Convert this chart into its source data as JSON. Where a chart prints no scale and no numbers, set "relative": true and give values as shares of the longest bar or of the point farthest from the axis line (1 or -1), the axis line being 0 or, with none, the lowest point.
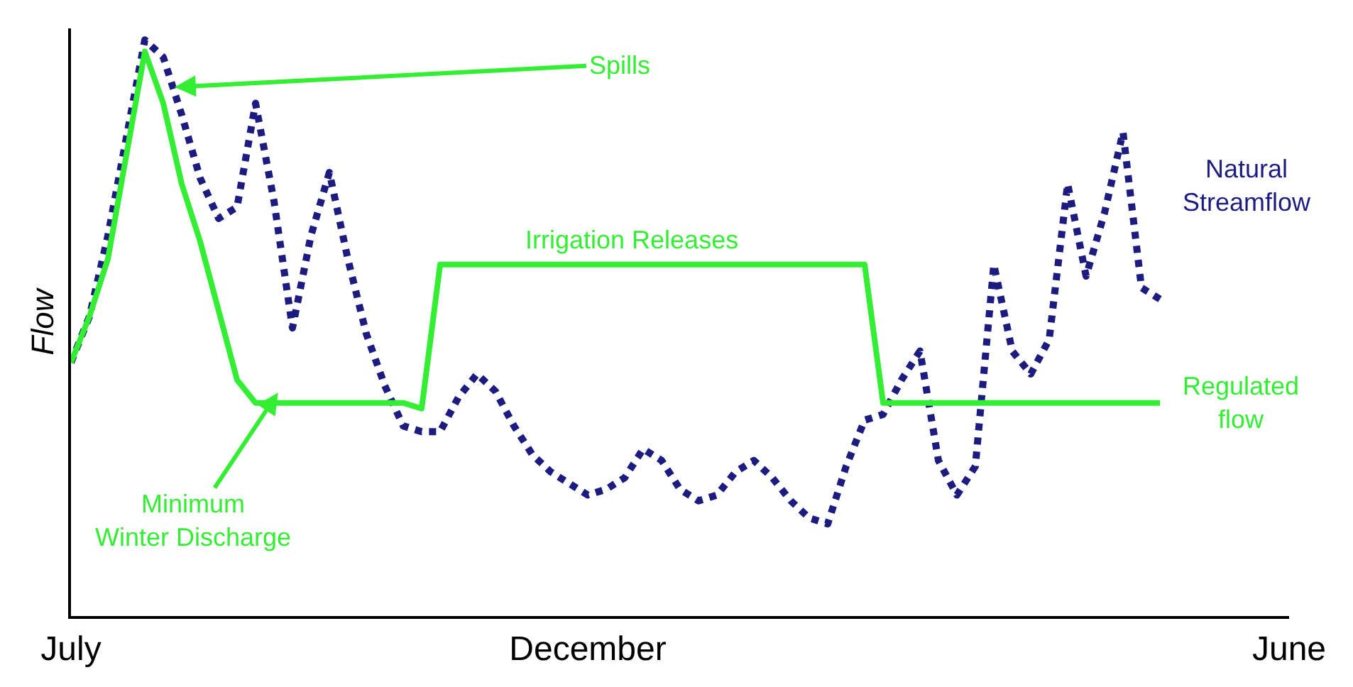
{
  "chart_data": {
    "type": "line",
    "relative": true,
    "ylabel": "Flow",
    "legend": false,
    "categories": [
      "July",
      null,
      null,
      null,
      null,
      null,
      null,
      null,
      null,
      null,
      null,
      null,
      null,
      null,
      null,
      null,
      null,
      null,
      null,
      null,
      null,
      null,
      null,
      null,
      null,
      null,
      null,
      null,
      "December",
      null,
      null,
      null,
      null,
      null,
      null,
      null,
      null,
      null,
      null,
      null,
      null,
      null,
      null,
      null,
      null,
      null,
      null,
      null,
      null,
      null,
      null,
      null,
      null,
      null,
      null,
      null,
      null,
      null,
      null,
      null,
      null,
      null,
      null,
      null,
      null,
      null,
      "June"
    ],
    "tick_labels": "x",
    "series": [
      {
        "name": "Natural Streamflow",
        "color": "#1c1c80",
        "line_style": "dotted",
        "values": [
          0.44,
          0.52,
          0.66,
          0.83,
          1,
          0.97,
          0.87,
          0.76,
          0.69,
          0.71,
          0.89,
          0.72,
          0.5,
          0.66,
          0.77,
          0.62,
          0.49,
          0.4,
          0.33,
          0.32,
          0.32,
          0.38,
          0.42,
          0.39,
          0.33,
          0.28,
          0.25,
          0.23,
          0.21,
          0.22,
          0.24,
          0.29,
          0.27,
          0.22,
          0.2,
          0.21,
          0.25,
          0.27,
          0.24,
          0.2,
          0.17,
          0.16,
          0.26,
          0.34,
          0.35,
          0.41,
          0.46,
          0.27,
          0.21,
          0.26,
          0.61,
          0.46,
          0.42,
          0.48,
          0.75,
          0.59,
          0.7,
          0.84,
          0.57,
          0.55,
          null,
          null,
          null,
          null,
          null,
          null,
          null
        ]
      },
      {
        "name": "Regulated flow",
        "color": "#33ee33",
        "line_style": "solid",
        "values": [
          0.44,
          0.52,
          0.62,
          0.8,
          0.98,
          0.89,
          0.75,
          0.65,
          0.53,
          0.41,
          0.37,
          0.37,
          0.37,
          0.37,
          0.37,
          0.37,
          0.37,
          0.37,
          0.37,
          0.36,
          0.61,
          0.61,
          0.61,
          0.61,
          0.61,
          0.61,
          0.61,
          0.61,
          0.61,
          0.61,
          0.61,
          0.61,
          0.61,
          0.61,
          0.61,
          0.61,
          0.61,
          0.61,
          0.61,
          0.61,
          0.61,
          0.61,
          0.61,
          0.61,
          0.37,
          0.37,
          0.37,
          0.37,
          0.37,
          0.37,
          0.37,
          0.37,
          0.37,
          0.37,
          0.37,
          0.37,
          0.37,
          0.37,
          0.37,
          0.37,
          null,
          null,
          null,
          null,
          null,
          null,
          null
        ]
      }
    ],
    "annotations": [
      "Spills",
      "Irrigation Releases",
      "Minimum Winter Discharge"
    ]
  }
}
